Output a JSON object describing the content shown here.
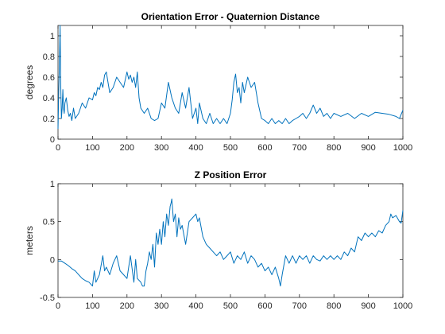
{
  "chart_data": [
    {
      "type": "line",
      "title": "Orientation Error - Quaternion Distance",
      "xlabel": "",
      "ylabel": "degrees",
      "xlim": [
        0,
        1000
      ],
      "ylim": [
        0,
        1.1
      ],
      "xticks": [
        0,
        100,
        200,
        300,
        400,
        500,
        600,
        700,
        800,
        900,
        1000
      ],
      "yticks": [
        0,
        0.2,
        0.4,
        0.6,
        0.8,
        1
      ],
      "xtick_labels": [
        "0",
        "100",
        "200",
        "300",
        "400",
        "500",
        "600",
        "700",
        "800",
        "900",
        "1000"
      ],
      "ytick_labels": [
        "0",
        "0.2",
        "0.4",
        "0.6",
        "0.8",
        "1"
      ],
      "grid": false,
      "series": [
        {
          "color": "#0072BD",
          "x": [
            0,
            2,
            4,
            6,
            8,
            10,
            12,
            14,
            16,
            18,
            20,
            24,
            28,
            32,
            36,
            40,
            45,
            50,
            60,
            70,
            80,
            90,
            100,
            105,
            110,
            115,
            120,
            125,
            130,
            135,
            140,
            145,
            150,
            160,
            170,
            180,
            190,
            200,
            205,
            210,
            215,
            220,
            225,
            230,
            235,
            240,
            250,
            260,
            270,
            280,
            290,
            300,
            310,
            320,
            330,
            340,
            350,
            360,
            370,
            380,
            390,
            400,
            405,
            410,
            420,
            430,
            440,
            450,
            460,
            470,
            480,
            490,
            500,
            505,
            510,
            515,
            520,
            525,
            530,
            535,
            540,
            550,
            560,
            570,
            580,
            590,
            600,
            610,
            620,
            630,
            640,
            650,
            660,
            670,
            680,
            690,
            700,
            710,
            720,
            730,
            740,
            750,
            760,
            770,
            780,
            790,
            800,
            820,
            840,
            860,
            880,
            900,
            920,
            940,
            960,
            980,
            990,
            1000
          ],
          "y": [
            0.1,
            0.45,
            0.7,
            1.1,
            0.5,
            0.2,
            0.3,
            0.48,
            0.3,
            0.25,
            0.35,
            0.4,
            0.28,
            0.22,
            0.25,
            0.18,
            0.3,
            0.2,
            0.25,
            0.35,
            0.3,
            0.4,
            0.38,
            0.45,
            0.42,
            0.5,
            0.48,
            0.55,
            0.5,
            0.62,
            0.65,
            0.55,
            0.45,
            0.5,
            0.6,
            0.55,
            0.5,
            0.65,
            0.58,
            0.62,
            0.55,
            0.6,
            0.5,
            0.65,
            0.4,
            0.3,
            0.25,
            0.3,
            0.2,
            0.18,
            0.2,
            0.35,
            0.3,
            0.55,
            0.4,
            0.3,
            0.25,
            0.45,
            0.3,
            0.5,
            0.2,
            0.3,
            0.15,
            0.35,
            0.2,
            0.15,
            0.25,
            0.15,
            0.2,
            0.15,
            0.2,
            0.15,
            0.25,
            0.38,
            0.55,
            0.63,
            0.45,
            0.5,
            0.35,
            0.55,
            0.45,
            0.6,
            0.5,
            0.55,
            0.35,
            0.2,
            0.18,
            0.15,
            0.2,
            0.15,
            0.18,
            0.15,
            0.2,
            0.15,
            0.18,
            0.2,
            0.22,
            0.25,
            0.2,
            0.25,
            0.33,
            0.25,
            0.3,
            0.22,
            0.25,
            0.2,
            0.25,
            0.22,
            0.25,
            0.2,
            0.25,
            0.22,
            0.26,
            0.25,
            0.24,
            0.22,
            0.2,
            0.28
          ]
        }
      ]
    },
    {
      "type": "line",
      "title": "Z Position Error",
      "xlabel": "",
      "ylabel": "meters",
      "xlim": [
        0,
        1000
      ],
      "ylim": [
        -0.5,
        1
      ],
      "xticks": [
        0,
        100,
        200,
        300,
        400,
        500,
        600,
        700,
        800,
        900,
        1000
      ],
      "yticks": [
        -0.5,
        0,
        0.5,
        1
      ],
      "xtick_labels": [
        "0",
        "100",
        "200",
        "300",
        "400",
        "500",
        "600",
        "700",
        "800",
        "900",
        "1000"
      ],
      "ytick_labels": [
        "-0.5",
        "0",
        "0.5",
        "1"
      ],
      "grid": false,
      "series": [
        {
          "color": "#0072BD",
          "x": [
            0,
            10,
            20,
            30,
            40,
            50,
            60,
            70,
            80,
            90,
            100,
            105,
            110,
            115,
            120,
            130,
            135,
            140,
            150,
            160,
            170,
            180,
            190,
            200,
            210,
            220,
            225,
            230,
            240,
            245,
            250,
            255,
            260,
            265,
            270,
            275,
            280,
            285,
            290,
            295,
            300,
            305,
            310,
            315,
            320,
            325,
            328,
            330,
            335,
            340,
            345,
            350,
            355,
            360,
            370,
            380,
            390,
            400,
            405,
            410,
            420,
            430,
            440,
            450,
            460,
            470,
            480,
            490,
            500,
            510,
            520,
            530,
            540,
            550,
            560,
            570,
            580,
            590,
            600,
            610,
            620,
            630,
            640,
            645,
            650,
            660,
            670,
            680,
            690,
            700,
            710,
            720,
            730,
            740,
            750,
            760,
            770,
            780,
            790,
            800,
            810,
            820,
            830,
            840,
            850,
            860,
            870,
            880,
            890,
            900,
            910,
            920,
            930,
            940,
            950,
            960,
            965,
            970,
            980,
            990,
            995,
            1000
          ],
          "y": [
            -0.02,
            -0.02,
            -0.05,
            -0.08,
            -0.12,
            -0.15,
            -0.2,
            -0.25,
            -0.28,
            -0.3,
            -0.35,
            -0.15,
            -0.3,
            -0.25,
            -0.2,
            0.05,
            -0.15,
            -0.1,
            -0.2,
            -0.05,
            0.05,
            -0.15,
            -0.2,
            -0.25,
            0.05,
            -0.3,
            0.0,
            -0.25,
            -0.3,
            -0.35,
            -0.35,
            -0.15,
            -0.05,
            0.1,
            0.0,
            0.2,
            -0.1,
            0.35,
            0.2,
            0.4,
            0.2,
            0.5,
            0.3,
            0.6,
            0.45,
            0.7,
            0.75,
            0.8,
            0.5,
            0.6,
            0.3,
            0.55,
            0.4,
            0.45,
            0.2,
            0.5,
            0.55,
            0.6,
            0.5,
            0.55,
            0.3,
            0.2,
            0.15,
            0.1,
            0.05,
            0.1,
            0.0,
            0.05,
            0.1,
            -0.05,
            0.05,
            0.0,
            0.1,
            -0.05,
            0.05,
            0.0,
            -0.1,
            -0.05,
            -0.15,
            -0.1,
            -0.2,
            -0.1,
            -0.25,
            -0.35,
            -0.2,
            0.05,
            -0.05,
            0.05,
            -0.05,
            0.05,
            0.0,
            0.05,
            -0.05,
            0.05,
            0.0,
            -0.02,
            0.05,
            0.0,
            0.05,
            0.0,
            0.05,
            0.0,
            0.1,
            0.05,
            0.15,
            0.1,
            0.3,
            0.25,
            0.35,
            0.3,
            0.35,
            0.3,
            0.38,
            0.35,
            0.45,
            0.5,
            0.6,
            0.55,
            0.58,
            0.5,
            0.48,
            0.65
          ]
        }
      ]
    }
  ]
}
